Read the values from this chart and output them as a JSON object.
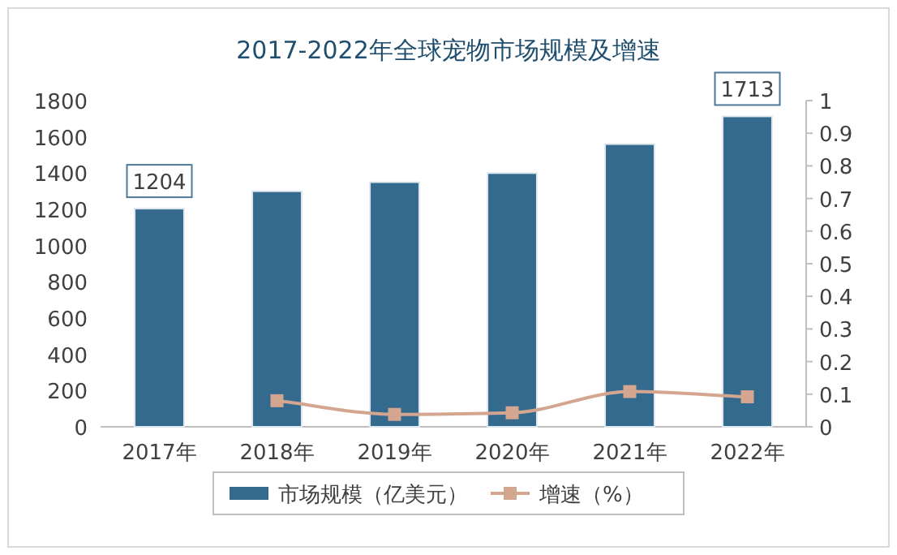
{
  "chart_data": {
    "type": "bar",
    "title": "2017-2022年全球宠物市场规模及增速",
    "categories": [
      "2017年",
      "2018年",
      "2019年",
      "2020年",
      "2021年",
      "2022年"
    ],
    "series": [
      {
        "name": "市场规模（亿美元）",
        "color": "#336a8e",
        "values": [
          1204,
          1300,
          1350,
          1400,
          1560,
          1713
        ],
        "value_labels": [
          "1204",
          null,
          null,
          null,
          null,
          "1713"
        ]
      },
      {
        "name": "增速（%）",
        "type": "line",
        "axis": "y2",
        "color": "#d4a58f",
        "marker": "square",
        "values": [
          null,
          0.08,
          0.038,
          0.043,
          0.108,
          0.092
        ]
      }
    ],
    "ylim": [
      0,
      1800
    ],
    "yticks": [
      0,
      200,
      400,
      600,
      800,
      1000,
      1200,
      1400,
      1600,
      1800
    ],
    "y2lim": [
      0,
      1
    ],
    "y2ticks": [
      0,
      0.1,
      0.2,
      0.3,
      0.4,
      0.5,
      0.6,
      0.7,
      0.8,
      0.9,
      1
    ],
    "grid": false,
    "legend": "bottom"
  }
}
